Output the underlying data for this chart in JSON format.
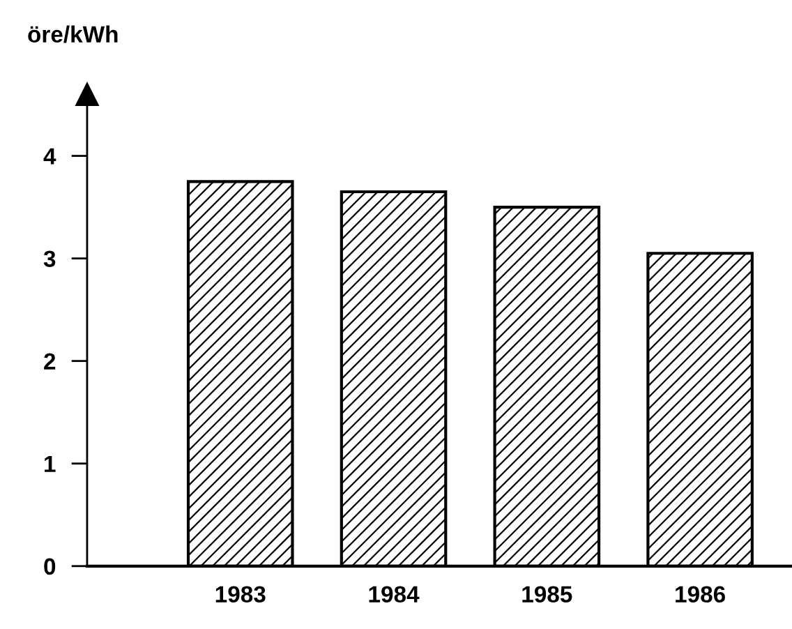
{
  "chart_data": {
    "type": "bar",
    "ylabel": "öre/kWh",
    "categories": [
      "1983",
      "1984",
      "1985",
      "1986"
    ],
    "values": [
      3.75,
      3.65,
      3.5,
      3.05
    ],
    "color": "#000000",
    "ylim": [
      0,
      4.6
    ],
    "yticks": [
      0,
      1,
      2,
      3,
      4
    ],
    "grid": false
  }
}
